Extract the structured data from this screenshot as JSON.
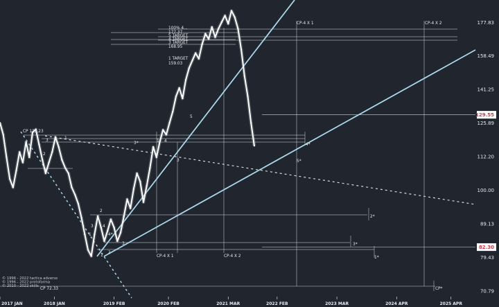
{
  "chart_data": {
    "type": "line",
    "title": "",
    "xlabel": "",
    "ylabel": "",
    "colors": {
      "background": "#21252d",
      "price_line": "#ffffff",
      "trend_line": "#a8d8ea",
      "guide_line": "#d7dbe2",
      "highlight_label": "#e0344a",
      "text": "#e8eaee"
    },
    "y_ticks": [
      {
        "value": 177.83,
        "label": "177.83"
      },
      {
        "value": 158.49,
        "label": "158.49"
      },
      {
        "value": 141.25,
        "label": "141.25"
      },
      {
        "value": 125.89,
        "label": "125.89"
      },
      {
        "value": 112.2,
        "label": "112.20"
      },
      {
        "value": 100.0,
        "label": "100.00"
      },
      {
        "value": 89.13,
        "label": "89.13"
      },
      {
        "value": 79.43,
        "label": "79.43"
      },
      {
        "value": 70.79,
        "label": "70.79"
      }
    ],
    "y_markers": [
      {
        "value": 129.55,
        "label": "129.55"
      },
      {
        "value": 82.3,
        "label": "82.30"
      }
    ],
    "x_ticks": [
      {
        "value": 2017.0,
        "label": "2017 JAN"
      },
      {
        "value": 2018.0,
        "label": "2018 JAN"
      },
      {
        "value": 2019.1,
        "label": "2019 FEB"
      },
      {
        "value": 2020.1,
        "label": "2020 FEB"
      },
      {
        "value": 2021.2,
        "label": "2021 MAR"
      },
      {
        "value": 2022.1,
        "label": "2022 FEB"
      },
      {
        "value": 2023.2,
        "label": "2023 MAR"
      },
      {
        "value": 2024.3,
        "label": "2024 APR"
      },
      {
        "value": 2025.3,
        "label": "2025 APR"
      }
    ],
    "xlim": [
      2017.0,
      2025.75
    ],
    "ylim": [
      68.8,
      192.0
    ],
    "y_scale": "log",
    "series": [
      {
        "x": [
          2017.0,
          2017.06,
          2017.12,
          2017.18,
          2017.24,
          2017.3,
          2017.36,
          2017.42,
          2017.48,
          2017.54,
          2017.6,
          2017.66,
          2017.72,
          2017.78,
          2017.84,
          2017.9,
          2017.96,
          2018.02,
          2018.08,
          2018.14,
          2018.2,
          2018.26,
          2018.32,
          2018.38,
          2018.44,
          2018.5,
          2018.56,
          2018.62,
          2018.68,
          2018.74,
          2018.8,
          2018.86,
          2018.92,
          2018.98,
          2019.04,
          2019.1,
          2019.16,
          2019.22,
          2019.28,
          2019.34,
          2019.4,
          2019.46,
          2019.52,
          2019.58,
          2019.64,
          2019.7,
          2019.76,
          2019.82,
          2019.88,
          2019.94,
          2020.0,
          2020.06,
          2020.12,
          2020.18,
          2020.24,
          2020.3,
          2020.36,
          2020.42,
          2020.48,
          2020.54,
          2020.6,
          2020.66,
          2020.72,
          2020.78,
          2020.84,
          2020.9,
          2020.96,
          2021.02,
          2021.08,
          2021.14,
          2021.2,
          2021.26,
          2021.32,
          2021.38,
          2021.44,
          2021.5,
          2021.56,
          2021.62,
          2021.68
        ],
        "y": [
          126.0,
          121.0,
          112.0,
          104.0,
          101.0,
          107.0,
          114.0,
          110.0,
          118.0,
          112.0,
          122.0,
          123.2,
          117.0,
          111.0,
          106.0,
          110.0,
          114.0,
          120.0,
          116.0,
          111.0,
          108.0,
          106.0,
          101.0,
          98.5,
          95.5,
          91.0,
          86.0,
          81.5,
          79.8,
          86.0,
          91.5,
          88.0,
          84.0,
          87.0,
          90.5,
          88.0,
          84.0,
          86.5,
          91.5,
          97.0,
          94.0,
          100.5,
          106.0,
          103.0,
          96.0,
          101.5,
          108.0,
          116.0,
          112.0,
          118.0,
          123.0,
          121.0,
          126.0,
          131.0,
          138.0,
          142.0,
          137.0,
          146.0,
          152.0,
          156.0,
          160.0,
          157.0,
          165.0,
          171.0,
          168.0,
          175.0,
          169.0,
          174.0,
          178.0,
          182.0,
          177.0,
          185.0,
          181.0,
          174.0,
          162.0,
          148.0,
          138.0,
          126.0,
          116.5
        ]
      }
    ],
    "annotations": [
      {
        "id": "cp_left",
        "text": "CP 123.23"
      },
      {
        "id": "lab_1a",
        "text": "1"
      },
      {
        "id": "lab_2a",
        "text": "2"
      },
      {
        "id": "lab_3a",
        "text": "3"
      },
      {
        "id": "lab_3star",
        "text": "3*"
      },
      {
        "id": "lab_1star",
        "text": "1*"
      },
      {
        "id": "lab_4",
        "text": "4"
      },
      {
        "id": "lab_3b",
        "text": "3"
      },
      {
        "id": "lab_2b",
        "text": "2"
      },
      {
        "id": "lab_3c",
        "text": "3"
      },
      {
        "id": "lab_4star_a",
        "text": "4*"
      },
      {
        "id": "lab_4b",
        "text": "4"
      },
      {
        "id": "lab_3d",
        "text": "3"
      },
      {
        "id": "lab_2c",
        "text": "2"
      },
      {
        "id": "lab_1b",
        "text": "1"
      },
      {
        "id": "lab_1c",
        "text": "1"
      },
      {
        "id": "lab_5",
        "text": "5"
      },
      {
        "id": "lab_4star_b",
        "text": "4*"
      },
      {
        "id": "lab_5star",
        "text": "5*"
      },
      {
        "id": "lab_2star",
        "text": "2*"
      },
      {
        "id": "lab_3star_b",
        "text": "3*"
      },
      {
        "id": "lab_1star_b",
        "text": "1*"
      },
      {
        "id": "lab_cpstar",
        "text": "CP*"
      },
      {
        "id": "cp4x1_top",
        "text": "CP-4 X 1"
      },
      {
        "id": "cp4x2_top",
        "text": "CP-4 X 2"
      },
      {
        "id": "cp4x1_bot",
        "text": "CP-4 X 1"
      },
      {
        "id": "cp4x2_bot",
        "text": "CP-4 X 2"
      },
      {
        "id": "t_100",
        "text": "100% 4..."
      },
      {
        "id": "t_177",
        "text": "177.37"
      },
      {
        "id": "t_5tgt",
        "text": "5 TARGET"
      },
      {
        "id": "t_4tgt",
        "text": "4 TARGET"
      },
      {
        "id": "t_3tgt",
        "text": "3 TARGET"
      },
      {
        "id": "t_16895",
        "text": "168.95"
      },
      {
        "id": "t_1tgt",
        "text": "1 TARGET"
      },
      {
        "id": "t_15903",
        "text": "159.03"
      },
      {
        "id": "cp_7233",
        "text": "CP 72.33"
      }
    ],
    "copyright": [
      "© 1996 - 2022 tactica adverso",
      "© 1996 - 2022 protoforma",
      "© 2010 - 2022 skills"
    ]
  }
}
